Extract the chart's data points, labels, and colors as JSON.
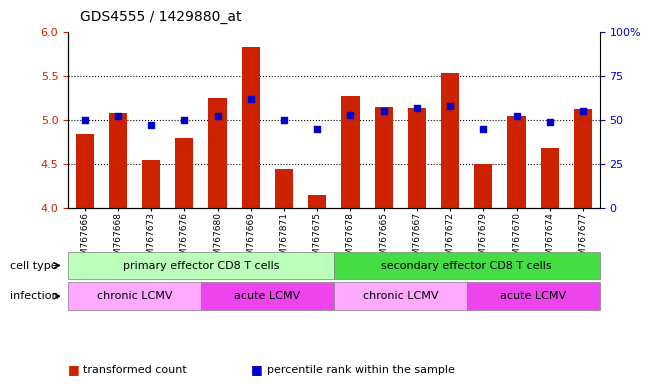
{
  "title": "GDS4555 / 1429880_at",
  "samples": [
    "GSM767666",
    "GSM767668",
    "GSM767673",
    "GSM767676",
    "GSM767680",
    "GSM767669",
    "GSM767871",
    "GSM767675",
    "GSM767678",
    "GSM767665",
    "GSM767667",
    "GSM767672",
    "GSM767679",
    "GSM767670",
    "GSM767674",
    "GSM767677"
  ],
  "bar_values": [
    4.84,
    5.08,
    4.55,
    4.8,
    5.25,
    5.82,
    4.44,
    4.15,
    5.27,
    5.15,
    5.13,
    5.53,
    4.5,
    5.04,
    4.68,
    5.12
  ],
  "percentile_values": [
    50,
    52,
    47,
    50,
    52,
    62,
    50,
    45,
    53,
    55,
    57,
    58,
    45,
    52,
    49,
    55
  ],
  "ylim_left": [
    4.0,
    6.0
  ],
  "ylim_right": [
    0,
    100
  ],
  "yticks_left": [
    4.0,
    4.5,
    5.0,
    5.5,
    6.0
  ],
  "yticks_right": [
    0,
    25,
    50,
    75,
    100
  ],
  "bar_color": "#cc2200",
  "dot_color": "#0000cc",
  "cell_type_groups": [
    {
      "label": "primary effector CD8 T cells",
      "start": 0,
      "end": 8,
      "color": "#bbffbb"
    },
    {
      "label": "secondary effector CD8 T cells",
      "start": 8,
      "end": 16,
      "color": "#44dd44"
    }
  ],
  "infection_groups": [
    {
      "label": "chronic LCMV",
      "start": 0,
      "end": 4,
      "color": "#ffaaff"
    },
    {
      "label": "acute LCMV",
      "start": 4,
      "end": 8,
      "color": "#ee44ee"
    },
    {
      "label": "chronic LCMV",
      "start": 8,
      "end": 12,
      "color": "#ffaaff"
    },
    {
      "label": "acute LCMV",
      "start": 12,
      "end": 16,
      "color": "#ee44ee"
    }
  ],
  "legend_items": [
    {
      "color": "#cc2200",
      "label": "transformed count"
    },
    {
      "color": "#0000cc",
      "label": "percentile rank within the sample"
    }
  ]
}
